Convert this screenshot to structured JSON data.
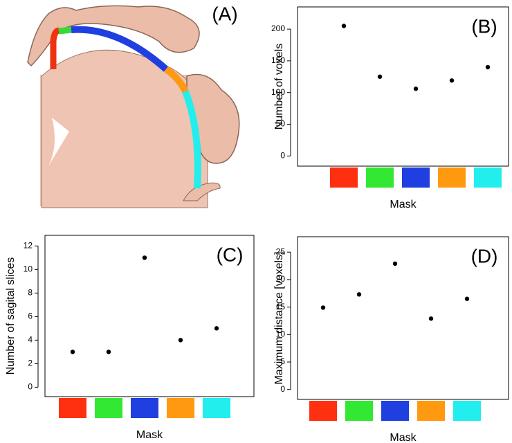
{
  "figure": {
    "panel_a_label": "(A)"
  },
  "chart_data": [
    {
      "type": "scatter",
      "label": "(B)",
      "y_label": "Number of voxels",
      "x_label": "Mask",
      "categories": [
        null,
        null,
        null,
        null,
        null
      ],
      "category_colors": [
        "#ff3010",
        "#33e833",
        "#1f3fe0",
        "#ff9a10",
        "#22eeee"
      ],
      "values": [
        205,
        125,
        106,
        119,
        140
      ],
      "color": "#000000",
      "ylim": [
        -16,
        235
      ],
      "yticks": [
        0,
        50,
        100,
        150,
        200
      ]
    },
    {
      "type": "scatter",
      "label": "(C)",
      "y_label": "Number of sagital slices",
      "x_label": "Mask",
      "categories": [
        null,
        null,
        null,
        null,
        null
      ],
      "category_colors": [
        "#ff3010",
        "#33e833",
        "#1f3fe0",
        "#ff9a10",
        "#22eeee"
      ],
      "values": [
        3,
        3,
        11,
        4,
        5
      ],
      "color": "#000000",
      "ylim": [
        -0.8,
        12.9
      ],
      "yticks": [
        0,
        2,
        4,
        6,
        8,
        10,
        12
      ]
    },
    {
      "type": "scatter",
      "label": "(D)",
      "y_label": "Maximum distance [voxels]",
      "x_label": "Mask",
      "categories": [
        null,
        null,
        null,
        null,
        null
      ],
      "category_colors": [
        "#ff3010",
        "#33e833",
        "#1f3fe0",
        "#ff9a10",
        "#22eeee"
      ],
      "values": [
        14.9,
        17.3,
        22.9,
        12.9,
        16.5
      ],
      "color": "#000000",
      "ylim": [
        -1.8,
        27.8
      ],
      "yticks": [
        0,
        5,
        10,
        15,
        20,
        25
      ]
    }
  ]
}
